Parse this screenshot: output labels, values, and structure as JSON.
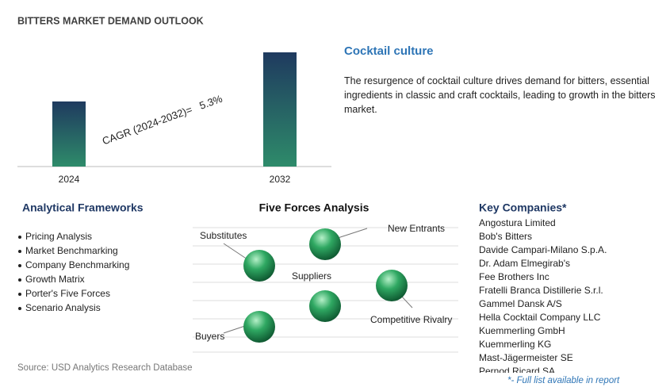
{
  "chart_data": {
    "type": "bar",
    "title": "BITTERS MARKET DEMAND OUTLOOK",
    "categories": [
      "2024",
      "2032"
    ],
    "values": [
      57,
      100
    ],
    "ylim": [
      0,
      100
    ],
    "annotation": "CAGR (2024-2032)=   5.3%"
  },
  "highlight": {
    "title": "Cocktail culture",
    "text": "The resurgence of cocktail culture drives demand for bitters, essential ingredients in classic and craft cocktails, leading to growth in the bitters market."
  },
  "frameworks": {
    "title": "Analytical Frameworks",
    "items": [
      "Pricing Analysis",
      "Market Benchmarking",
      "Company Benchmarking",
      "Growth Matrix",
      "Porter's Five Forces",
      "Scenario Analysis"
    ]
  },
  "five_forces": {
    "title": "Five Forces Analysis",
    "labels": [
      "Substitutes",
      "New Entrants",
      "Suppliers",
      "Competitive Rivalry",
      "Buyers"
    ]
  },
  "companies": {
    "title": "Key Companies*",
    "items": [
      "Angostura Limited",
      "Bob's Bitters",
      "Davide Campari-Milano S.p.A.",
      "Dr. Adam Elmegirab's",
      "Fee Brothers Inc",
      "Fratelli Branca Distillerie S.r.l.",
      "Gammel Dansk A/S",
      "Hella Cocktail Company LLC",
      "Kuemmerling GmbH",
      "Kuemmerling KG",
      "Mast-Jägermeister SE",
      "Pernod Ricard SA"
    ],
    "note": "*- Full list available in report"
  },
  "source": "Source: USD Analytics Research Database"
}
